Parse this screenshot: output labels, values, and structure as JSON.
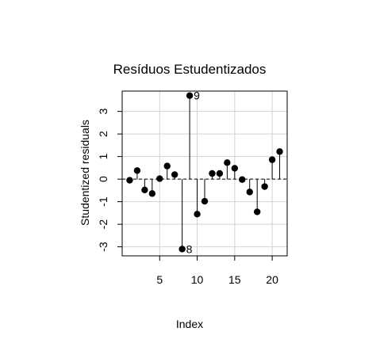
{
  "chart_data": {
    "type": "scatter",
    "style": "needle",
    "title": "Resíduos Estudentizados",
    "xlabel": "Index",
    "ylabel": "Studentized residuals",
    "xlim": [
      0,
      22
    ],
    "ylim": [
      -3.4,
      3.9
    ],
    "x_ticks": [
      5,
      10,
      15,
      20
    ],
    "y_ticks": [
      -3,
      -2,
      -1,
      0,
      1,
      2,
      3
    ],
    "grid": true,
    "reference_line": 0,
    "x": [
      1,
      2,
      3,
      4,
      5,
      6,
      7,
      8,
      9,
      10,
      11,
      12,
      13,
      14,
      15,
      16,
      17,
      18,
      19,
      20,
      21
    ],
    "values": [
      -0.05,
      0.38,
      -0.48,
      -0.64,
      0.02,
      0.58,
      0.2,
      -3.1,
      3.7,
      -1.55,
      -0.98,
      0.25,
      0.25,
      0.73,
      0.48,
      -0.02,
      -0.57,
      -1.45,
      -0.33,
      0.86,
      1.22
    ],
    "labeled_points": [
      {
        "x": 8,
        "label": "8"
      },
      {
        "x": 9,
        "label": "9"
      }
    ]
  }
}
